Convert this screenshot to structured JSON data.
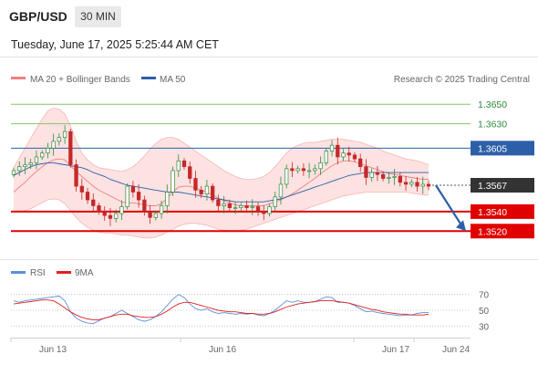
{
  "header": {
    "symbol": "GBP/USD",
    "timeframe": "30 MIN",
    "datetime": "Tuesday, June 17, 2025 5:25:44 AM CET"
  },
  "legend": {
    "bollinger": "MA 20 + Bollinger Bands",
    "ma50": "MA 50",
    "credit": "Research © 2025 Trading Central"
  },
  "rsi_legend": {
    "rsi": "RSI",
    "ma": "9MA"
  },
  "colors": {
    "bollinger": "#f08080",
    "ma50": "#2c5fa8",
    "up": "#2e8b3a",
    "down": "#c62828",
    "resistance": "#86c46a",
    "current": "#2c5fa8",
    "support": "#e00000",
    "rsi": "#5b8fd9",
    "rsi_ma": "#e02020"
  },
  "chart_data": [
    {
      "type": "line",
      "title": "GBP/USD 30 MIN",
      "x_ticks": [
        "Jun 13",
        "Jun 16",
        "Jun 17",
        "Jun 24"
      ],
      "ylim": [
        1.3495,
        1.3668
      ],
      "levels": [
        {
          "value": 1.365,
          "label": "1.3650",
          "kind": "resistance"
        },
        {
          "value": 1.363,
          "label": "1.3630",
          "kind": "resistance"
        },
        {
          "value": 1.3605,
          "label": "1.3605",
          "kind": "pivot"
        },
        {
          "value": 1.3567,
          "label": "1.3567",
          "kind": "current"
        },
        {
          "value": 1.354,
          "label": "1.3540",
          "kind": "support"
        },
        {
          "value": 1.352,
          "label": "1.3520",
          "kind": "support"
        }
      ],
      "close": [
        1.3582,
        1.3586,
        1.3588,
        1.359,
        1.3596,
        1.36,
        1.3605,
        1.3612,
        1.3616,
        1.3622,
        1.3588,
        1.3566,
        1.356,
        1.3552,
        1.3546,
        1.354,
        1.3536,
        1.3533,
        1.3538,
        1.3545,
        1.3566,
        1.356,
        1.3552,
        1.354,
        1.3534,
        1.3538,
        1.3546,
        1.356,
        1.3582,
        1.3592,
        1.3586,
        1.3574,
        1.3562,
        1.3558,
        1.3566,
        1.3552,
        1.3546,
        1.3548,
        1.3544,
        1.3544,
        1.3546,
        1.3544,
        1.3545,
        1.354,
        1.3538,
        1.3545,
        1.3555,
        1.3568,
        1.3584,
        1.3582,
        1.3584,
        1.3582,
        1.3582,
        1.3584,
        1.359,
        1.3602,
        1.3608,
        1.3596,
        1.36,
        1.3598,
        1.3594,
        1.3586,
        1.3575,
        1.358,
        1.3578,
        1.3574,
        1.3575,
        1.3576,
        1.357,
        1.3568,
        1.357,
        1.3566,
        1.3568,
        1.3566
      ],
      "ma20": [
        1.356,
        1.3565,
        1.357,
        1.3576,
        1.3581,
        1.3586,
        1.359,
        1.3593,
        1.3594,
        1.3593,
        1.3587,
        1.3581,
        1.3576,
        1.3571,
        1.3566,
        1.3562,
        1.3559,
        1.3556,
        1.3553,
        1.355,
        1.3549,
        1.3549,
        1.3548,
        1.3547,
        1.3546,
        1.3546,
        1.3548,
        1.3554,
        1.356,
        1.3565,
        1.3566,
        1.3566,
        1.3564,
        1.3562,
        1.356,
        1.3557,
        1.3554,
        1.3551,
        1.3549,
        1.3547,
        1.3546,
        1.3546,
        1.3546,
        1.3546,
        1.3546,
        1.3548,
        1.355,
        1.3552,
        1.3555,
        1.3558,
        1.3562,
        1.3566,
        1.357,
        1.3574,
        1.3579,
        1.3583,
        1.3587,
        1.359,
        1.3592,
        1.3592,
        1.3591,
        1.3589,
        1.3587,
        1.3585,
        1.3583,
        1.3581,
        1.3579,
        1.3578,
        1.3577,
        1.3576,
        1.3575,
        1.3574,
        1.3573,
        1.3573
      ],
      "bb_upper": [
        1.3585,
        1.3595,
        1.3605,
        1.3615,
        1.3625,
        1.3635,
        1.3643,
        1.3646,
        1.3645,
        1.364,
        1.3628,
        1.3612,
        1.36,
        1.3593,
        1.3588,
        1.3585,
        1.3584,
        1.3583,
        1.3582,
        1.3581,
        1.3583,
        1.3586,
        1.3591,
        1.3597,
        1.3604,
        1.361,
        1.3614,
        1.3616,
        1.3616,
        1.3614,
        1.361,
        1.3606,
        1.3602,
        1.3598,
        1.3594,
        1.359,
        1.3586,
        1.3582,
        1.3579,
        1.3576,
        1.3574,
        1.3573,
        1.3573,
        1.3574,
        1.3576,
        1.358,
        1.3586,
        1.3593,
        1.36,
        1.3605,
        1.3608,
        1.361,
        1.3611,
        1.3611,
        1.3612,
        1.3613,
        1.3614,
        1.3614,
        1.3614,
        1.3613,
        1.3612,
        1.3611,
        1.3609,
        1.3607,
        1.3605,
        1.3602,
        1.36,
        1.3598,
        1.3596,
        1.3594,
        1.3593,
        1.3592,
        1.359,
        1.3588
      ],
      "bb_lower": [
        1.354,
        1.354,
        1.3541,
        1.3543,
        1.3546,
        1.3549,
        1.3552,
        1.3553,
        1.3552,
        1.3548,
        1.3541,
        1.3534,
        1.3528,
        1.3524,
        1.3521,
        1.3519,
        1.3518,
        1.3518,
        1.3517,
        1.3516,
        1.3516,
        1.3515,
        1.3514,
        1.3513,
        1.3513,
        1.3514,
        1.3516,
        1.3519,
        1.3522,
        1.3525,
        1.3527,
        1.3528,
        1.3528,
        1.3527,
        1.3526,
        1.3524,
        1.3522,
        1.3521,
        1.352,
        1.352,
        1.3521,
        1.3522,
        1.3524,
        1.3526,
        1.3528,
        1.353,
        1.3532,
        1.3534,
        1.3536,
        1.3538,
        1.354,
        1.3542,
        1.3544,
        1.3546,
        1.3548,
        1.355,
        1.3552,
        1.3554,
        1.3556,
        1.3557,
        1.3558,
        1.3559,
        1.356,
        1.356,
        1.356,
        1.356,
        1.356,
        1.356,
        1.356,
        1.356,
        1.3559,
        1.3558,
        1.3557,
        1.3557
      ],
      "ma50": [
        1.3577,
        1.358,
        1.3583,
        1.3586,
        1.3588,
        1.3589,
        1.359,
        1.359,
        1.3589,
        1.3588,
        1.3587,
        1.3586,
        1.3585,
        1.3583,
        1.358,
        1.3578,
        1.3576,
        1.3573,
        1.3571,
        1.3569,
        1.3567,
        1.3566,
        1.3565,
        1.3564,
        1.3563,
        1.3562,
        1.3561,
        1.356,
        1.356,
        1.356,
        1.3559,
        1.3558,
        1.3557,
        1.3556,
        1.3555,
        1.3554,
        1.3553,
        1.3552,
        1.3551,
        1.355,
        1.355,
        1.355,
        1.355,
        1.355,
        1.355,
        1.3551,
        1.3552,
        1.3553,
        1.3555,
        1.3557,
        1.3559,
        1.3561,
        1.3563,
        1.3565,
        1.3567,
        1.3569,
        1.3571,
        1.3573,
        1.3575,
        1.3577,
        1.3578,
        1.3579,
        1.358,
        1.358,
        1.358,
        1.358,
        1.358,
        1.358,
        1.358,
        1.358,
        1.358,
        1.358,
        1.358,
        1.358
      ],
      "forecast": [
        1.3567,
        1.352
      ]
    },
    {
      "type": "line",
      "title": "RSI",
      "ylim": [
        20,
        80
      ],
      "y_ticks": [
        70,
        50,
        30
      ],
      "rsi": [
        62,
        60,
        62,
        63,
        64,
        65,
        66,
        67,
        68,
        62,
        48,
        40,
        36,
        34,
        33,
        37,
        40,
        42,
        46,
        50,
        46,
        42,
        38,
        36,
        38,
        42,
        48,
        56,
        64,
        70,
        66,
        58,
        52,
        50,
        52,
        48,
        46,
        47,
        46,
        45,
        46,
        45,
        46,
        44,
        43,
        46,
        50,
        56,
        62,
        60,
        62,
        60,
        60,
        61,
        64,
        67,
        66,
        60,
        60,
        59,
        56,
        52,
        48,
        49,
        47,
        46,
        45,
        44,
        43,
        44,
        44,
        46,
        47,
        47
      ],
      "rsi_ma": [
        58,
        59,
        60,
        61,
        62,
        63,
        63,
        62,
        58,
        53,
        48,
        44,
        41,
        39,
        38,
        38,
        40,
        42,
        44,
        45,
        45,
        43,
        42,
        41,
        41,
        42,
        45,
        49,
        54,
        58,
        60,
        60,
        58,
        56,
        54,
        52,
        50,
        49,
        48,
        48,
        47,
        46,
        46,
        45,
        45,
        46,
        48,
        51,
        54,
        56,
        58,
        59,
        60,
        61,
        62,
        62,
        62,
        61,
        60,
        59,
        57,
        55,
        53,
        51,
        50,
        48,
        47,
        46,
        45,
        45,
        44,
        44,
        44,
        45
      ]
    }
  ]
}
